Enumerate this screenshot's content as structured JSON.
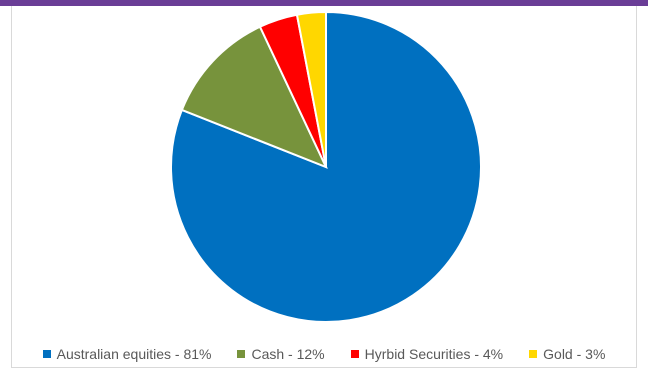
{
  "chart_data": {
    "type": "pie",
    "title": "",
    "slices": [
      {
        "label": "Australian equities - 81%",
        "value": 81,
        "color": "#0070c0"
      },
      {
        "label": "Cash - 12%",
        "value": 12,
        "color": "#77933c"
      },
      {
        "label": "Hyrbid Securities - 4%",
        "value": 4,
        "color": "#ff0000"
      },
      {
        "label": "Gold - 3%",
        "value": 3,
        "color": "#ffd700"
      }
    ],
    "start_angle": "12 o'clock",
    "direction": "clockwise",
    "legend_position": "bottom"
  },
  "frame": {
    "accent_bar_color": "#6a3d96"
  }
}
